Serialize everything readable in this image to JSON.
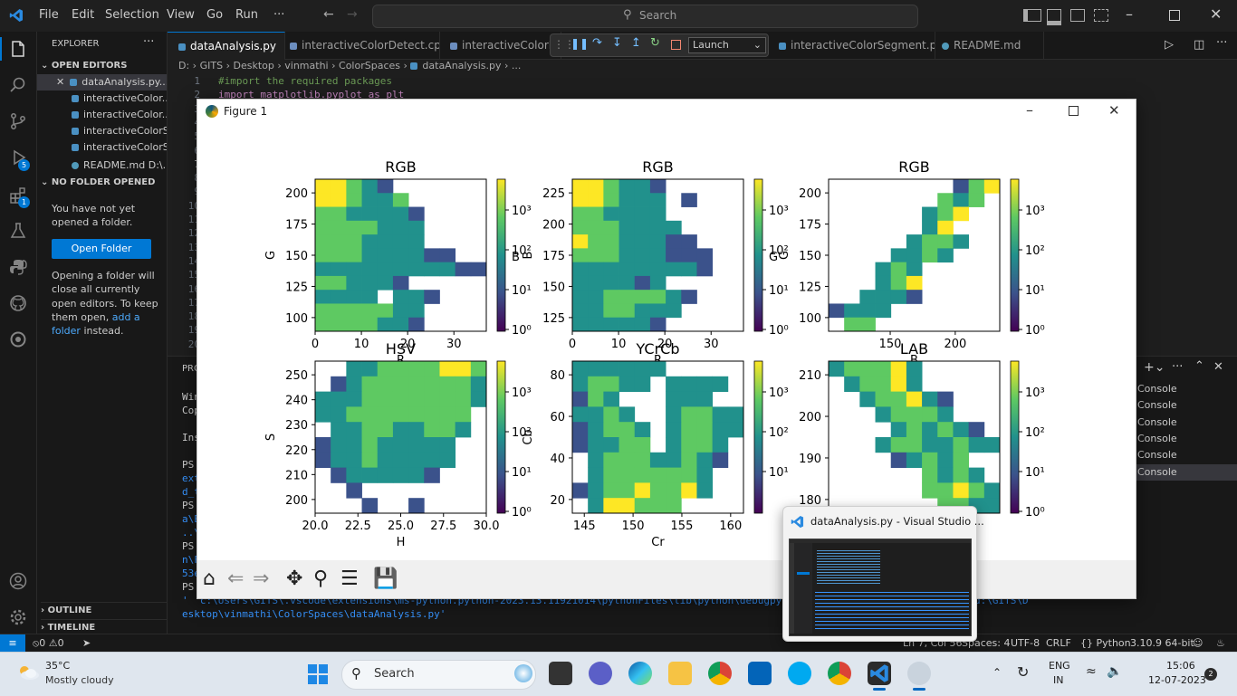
{
  "titlebar": {
    "menus": [
      "File",
      "Edit",
      "Selection",
      "View",
      "Go",
      "Run",
      "···"
    ],
    "search": "Search"
  },
  "sidebar": {
    "explorer": "EXPLORER",
    "open_editors": "OPEN EDITORS",
    "files": [
      "dataAnalysis.py...",
      "interactiveColor...",
      "interactiveColor...",
      "interactiveColorS...",
      "interactiveColorS...",
      "README.md  D:\\..."
    ],
    "no_folder": "NO FOLDER OPENED",
    "no_folder_text": "You have not yet opened a folder.",
    "open_folder": "Open Folder",
    "info_prefix": "Opening a folder will close all currently open editors. To keep them open,",
    "info_link": "add a folder",
    "info_suffix": "instead.",
    "outline": "OUTLINE",
    "timeline": "TIMELINE",
    "badges": {
      "run_debug": "5",
      "extensions": "1"
    }
  },
  "tabs": [
    {
      "label": "dataAnalysis.py",
      "active": true
    },
    {
      "label": "interactiveColorDetect.cpp",
      "active": false
    },
    {
      "label": "interactiveColorDete",
      "active": false
    },
    {
      "label": "interactiveColorSegment.py",
      "active": false
    },
    {
      "label": "README.md",
      "active": false
    }
  ],
  "debug": {
    "config": "Launch"
  },
  "breadcrumb": [
    "D:",
    "GITS",
    "Desktop",
    "vinmathi",
    "ColorSpaces",
    "dataAnalysis.py",
    "..."
  ],
  "code": {
    "line_numbers": [
      "1",
      "2",
      "3",
      "4",
      "5",
      "6",
      "7",
      "8",
      "9",
      "10",
      "11",
      "12",
      "13",
      "14",
      "15",
      "16",
      "17",
      "18",
      "19",
      "20"
    ],
    "comment": "#import the required packages",
    "line2": "import matplotlib.pyplot as plt"
  },
  "panel": {
    "tab_label": "PRO",
    "terminal_lines": [
      "Win",
      "Cop",
      "",
      "Ins",
      "",
      "PS",
      "ext",
      "d_t",
      "PS",
      "a\\E",
      "..\\",
      "PS",
      "n\\F",
      "53e",
      "PS"
    ],
    "last_cmd_1": "' 'c:\\Users\\GITS\\.vscode\\extensions\\ms-python.python-2023.13.11921014\\pythonFiles\\lib\\python\\debugpy\\adapter/../",
    "last_cmd_tail": "d:\\GITS\\D",
    "last_cmd_2": "esktop\\vinmathi\\ColorSpaces\\dataAnalysis.py'",
    "consoles": [
      "Console",
      "Console",
      "Console",
      "Console",
      "Console",
      "Console"
    ]
  },
  "statusbar": {
    "errors": "0",
    "warnings": "0",
    "position": "Ln 7, Col 56",
    "spaces": "Spaces: 4",
    "encoding": "UTF-8",
    "eol": "CRLF",
    "language": "Python",
    "interpreter": "3.10.9 64-bit"
  },
  "figure": {
    "title": "Figure 1"
  },
  "chart_data": [
    {
      "type": "heatmap",
      "title": "RGB",
      "xlabel": "R",
      "ylabel": "G",
      "xticks": [
        "0",
        "10",
        "20",
        "30"
      ],
      "yticks": [
        "100",
        "125",
        "150",
        "175",
        "200"
      ],
      "colorbar_ticks": [
        "10³",
        "10²",
        "10¹",
        "10⁰"
      ],
      "colorbar_label": "B",
      "scale": "log",
      "grid": [
        [
          4,
          4,
          3,
          2,
          1,
          0,
          0,
          0,
          0,
          0,
          0
        ],
        [
          4,
          4,
          3,
          2,
          2,
          3,
          0,
          0,
          0,
          0,
          0
        ],
        [
          3,
          3,
          2,
          2,
          2,
          2,
          1,
          0,
          0,
          0,
          0
        ],
        [
          3,
          3,
          3,
          3,
          2,
          2,
          2,
          0,
          0,
          0,
          0
        ],
        [
          3,
          3,
          3,
          2,
          2,
          2,
          2,
          0,
          0,
          0,
          0
        ],
        [
          3,
          3,
          3,
          2,
          2,
          2,
          2,
          1,
          1,
          0,
          0
        ],
        [
          2,
          2,
          2,
          2,
          2,
          2,
          2,
          2,
          2,
          1,
          1
        ],
        [
          3,
          3,
          2,
          2,
          2,
          1,
          0,
          0,
          0,
          0,
          0
        ],
        [
          2,
          2,
          2,
          2,
          0,
          2,
          2,
          1,
          0,
          0,
          0
        ],
        [
          3,
          3,
          3,
          3,
          3,
          2,
          2,
          0,
          0,
          0,
          0
        ],
        [
          3,
          3,
          3,
          3,
          2,
          2,
          1,
          0,
          0,
          0,
          0
        ]
      ]
    },
    {
      "type": "heatmap",
      "title": "RGB",
      "xlabel": "R",
      "ylabel": "B",
      "xticks": [
        "0",
        "10",
        "20",
        "30"
      ],
      "yticks": [
        "125",
        "150",
        "175",
        "200",
        "225"
      ],
      "colorbar_ticks": [
        "10³",
        "10²",
        "10¹",
        "10⁰"
      ],
      "colorbar_label": "G",
      "scale": "log",
      "grid": [
        [
          4,
          4,
          3,
          2,
          2,
          1,
          0,
          0,
          0,
          0,
          0
        ],
        [
          4,
          4,
          3,
          2,
          2,
          2,
          0,
          1,
          0,
          0,
          0
        ],
        [
          3,
          3,
          2,
          2,
          2,
          2,
          0,
          0,
          0,
          0,
          0
        ],
        [
          3,
          3,
          3,
          2,
          2,
          2,
          2,
          0,
          0,
          0,
          0
        ],
        [
          4,
          3,
          3,
          2,
          2,
          2,
          1,
          1,
          0,
          0,
          0
        ],
        [
          3,
          3,
          3,
          2,
          2,
          2,
          1,
          1,
          1,
          0,
          0
        ],
        [
          2,
          2,
          2,
          2,
          2,
          2,
          2,
          2,
          1,
          0,
          0
        ],
        [
          2,
          2,
          2,
          2,
          1,
          2,
          0,
          0,
          0,
          0,
          0
        ],
        [
          2,
          2,
          3,
          3,
          3,
          3,
          2,
          1,
          0,
          0,
          0
        ],
        [
          2,
          2,
          3,
          3,
          2,
          2,
          2,
          0,
          0,
          0,
          0
        ],
        [
          2,
          2,
          2,
          2,
          2,
          1,
          0,
          0,
          0,
          0,
          0
        ]
      ]
    },
    {
      "type": "heatmap",
      "title": "RGB",
      "xlabel": "B",
      "ylabel": "G",
      "xticks": [
        "150",
        "200"
      ],
      "yticks": [
        "100",
        "125",
        "150",
        "175",
        "200"
      ],
      "colorbar_ticks": [
        "10³",
        "10²",
        "10¹",
        "10⁰"
      ],
      "colorbar_label": "",
      "scale": "log",
      "grid": [
        [
          0,
          0,
          0,
          0,
          0,
          0,
          0,
          0,
          1,
          3,
          4
        ],
        [
          0,
          0,
          0,
          0,
          0,
          0,
          0,
          3,
          2,
          3,
          0
        ],
        [
          0,
          0,
          0,
          0,
          0,
          0,
          2,
          3,
          4,
          0,
          0
        ],
        [
          0,
          0,
          0,
          0,
          0,
          0,
          2,
          4,
          0,
          0,
          0
        ],
        [
          0,
          0,
          0,
          0,
          0,
          2,
          3,
          3,
          2,
          0,
          0
        ],
        [
          0,
          0,
          0,
          0,
          2,
          2,
          3,
          2,
          0,
          0,
          0
        ],
        [
          0,
          0,
          0,
          2,
          3,
          2,
          0,
          0,
          0,
          0,
          0
        ],
        [
          0,
          0,
          0,
          2,
          3,
          4,
          0,
          0,
          0,
          0,
          0
        ],
        [
          0,
          0,
          2,
          2,
          2,
          1,
          0,
          0,
          0,
          0,
          0
        ],
        [
          1,
          2,
          2,
          2,
          0,
          0,
          0,
          0,
          0,
          0,
          0
        ],
        [
          0,
          3,
          3,
          0,
          0,
          0,
          0,
          0,
          0,
          0,
          0
        ]
      ]
    },
    {
      "type": "heatmap",
      "title": "HSV",
      "xlabel": "H",
      "ylabel": "S",
      "xticks": [
        "20.0",
        "22.5",
        "25.0",
        "27.5",
        "30.0"
      ],
      "yticks": [
        "200",
        "210",
        "220",
        "230",
        "240",
        "250"
      ],
      "colorbar_ticks": [
        "10³",
        "10²",
        "10¹",
        "10⁰"
      ],
      "colorbar_label": "",
      "scale": "log",
      "grid": [
        [
          0,
          0,
          2,
          2,
          3,
          3,
          3,
          3,
          4,
          4,
          3
        ],
        [
          0,
          1,
          2,
          3,
          3,
          3,
          3,
          3,
          3,
          3,
          2
        ],
        [
          2,
          2,
          2,
          3,
          3,
          3,
          3,
          3,
          3,
          3,
          2
        ],
        [
          2,
          2,
          3,
          3,
          3,
          3,
          3,
          3,
          3,
          3,
          0
        ],
        [
          0,
          2,
          2,
          3,
          3,
          2,
          2,
          3,
          3,
          2,
          0
        ],
        [
          1,
          2,
          2,
          3,
          2,
          2,
          2,
          2,
          2,
          0,
          0
        ],
        [
          1,
          2,
          2,
          3,
          2,
          2,
          2,
          2,
          2,
          0,
          0
        ],
        [
          0,
          1,
          2,
          2,
          2,
          2,
          2,
          1,
          0,
          0,
          0
        ],
        [
          0,
          0,
          1,
          0,
          0,
          0,
          0,
          0,
          0,
          0,
          0
        ],
        [
          0,
          0,
          0,
          1,
          0,
          0,
          1,
          0,
          0,
          0,
          0
        ]
      ]
    },
    {
      "type": "heatmap",
      "title": "YCrCb",
      "xlabel": "Cr",
      "ylabel": "Cb",
      "xticks": [
        "145",
        "150",
        "155",
        "160"
      ],
      "yticks": [
        "20",
        "40",
        "60",
        "80"
      ],
      "colorbar_ticks": [
        "10³",
        "10²",
        "10¹"
      ],
      "colorbar_label": "",
      "scale": "log",
      "grid": [
        [
          2,
          2,
          2,
          2,
          2,
          2,
          0,
          0,
          0,
          0,
          0
        ],
        [
          2,
          3,
          3,
          2,
          2,
          0,
          2,
          2,
          2,
          2,
          0
        ],
        [
          1,
          3,
          2,
          0,
          0,
          0,
          2,
          2,
          2,
          0,
          0
        ],
        [
          2,
          2,
          3,
          2,
          0,
          0,
          2,
          3,
          3,
          2,
          2
        ],
        [
          1,
          2,
          3,
          3,
          2,
          0,
          2,
          3,
          3,
          2,
          2
        ],
        [
          1,
          2,
          2,
          3,
          3,
          0,
          2,
          3,
          3,
          2,
          0
        ],
        [
          0,
          2,
          3,
          3,
          3,
          2,
          2,
          3,
          2,
          1,
          0
        ],
        [
          0,
          2,
          3,
          3,
          3,
          3,
          3,
          3,
          2,
          0,
          0
        ],
        [
          1,
          2,
          3,
          3,
          4,
          3,
          3,
          4,
          2,
          0,
          0
        ],
        [
          0,
          2,
          4,
          4,
          3,
          3,
          3,
          0,
          0,
          0,
          0
        ]
      ]
    },
    {
      "type": "heatmap",
      "title": "LAB",
      "xlabel": "",
      "ylabel": "",
      "xticks": [
        "150"
      ],
      "yticks": [
        "180",
        "190",
        "200",
        "210"
      ],
      "colorbar_ticks": [
        "10³",
        "10²",
        "10¹",
        "10⁰"
      ],
      "colorbar_label": "",
      "scale": "log",
      "grid": [
        [
          2,
          3,
          3,
          3,
          4,
          2,
          0,
          0,
          0,
          0,
          0
        ],
        [
          0,
          2,
          3,
          3,
          4,
          2,
          0,
          0,
          0,
          0,
          0
        ],
        [
          0,
          0,
          2,
          3,
          3,
          4,
          2,
          1,
          0,
          0,
          0
        ],
        [
          0,
          0,
          0,
          2,
          3,
          3,
          3,
          2,
          0,
          0,
          0
        ],
        [
          0,
          0,
          0,
          0,
          2,
          3,
          2,
          3,
          2,
          1,
          0
        ],
        [
          0,
          0,
          0,
          2,
          3,
          3,
          2,
          2,
          3,
          2,
          2
        ],
        [
          0,
          0,
          0,
          0,
          1,
          2,
          3,
          2,
          3,
          0,
          0
        ],
        [
          0,
          0,
          0,
          0,
          0,
          0,
          3,
          2,
          3,
          2,
          0
        ],
        [
          0,
          0,
          0,
          0,
          0,
          0,
          3,
          3,
          4,
          3,
          2
        ],
        [
          0,
          0,
          0,
          0,
          0,
          0,
          0,
          3,
          3,
          2,
          2
        ]
      ]
    }
  ],
  "toolbar_icons": [
    "home-icon",
    "back-icon",
    "forward-icon",
    "pan-icon",
    "zoom-icon",
    "configure-icon",
    "save-icon"
  ],
  "preview": {
    "title": "dataAnalysis.py - Visual Studio ..."
  },
  "taskbar": {
    "weather_temp": "35°C",
    "weather_desc": "Mostly cloudy",
    "search": "Search",
    "lang_1": "ENG",
    "lang_2": "IN",
    "time": "15:06",
    "date": "12-07-2023",
    "notifications": "2"
  },
  "colors": {
    "accent": "#0078d4",
    "viridis": [
      "#440154",
      "#3b528b",
      "#21918c",
      "#5ec962",
      "#fde725"
    ]
  }
}
